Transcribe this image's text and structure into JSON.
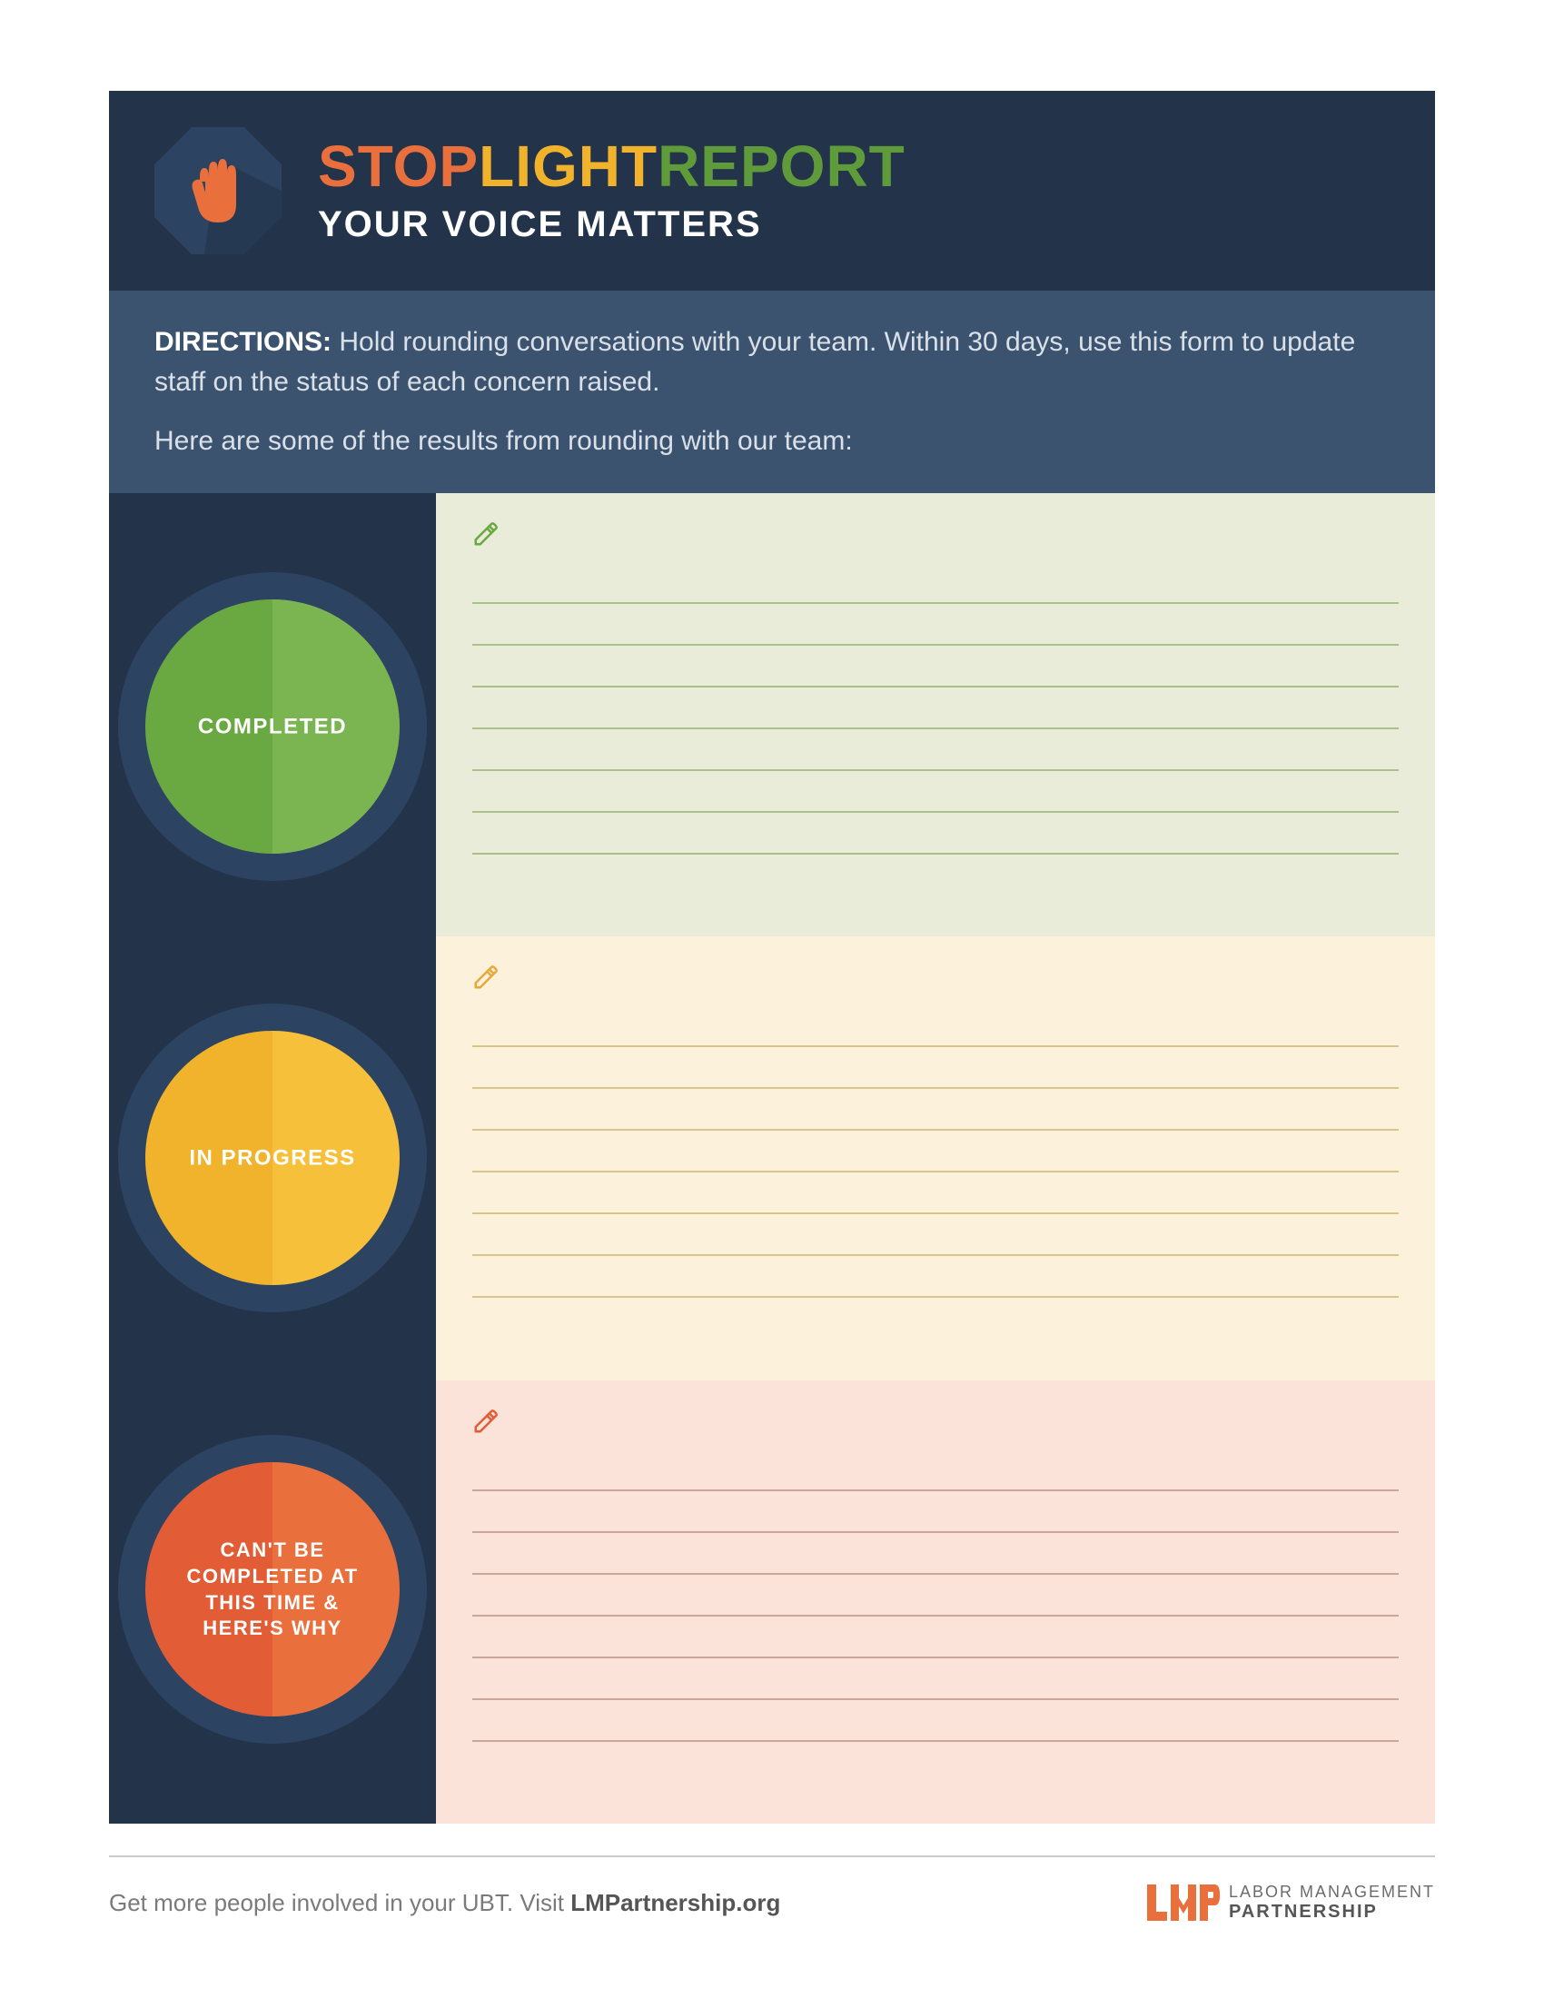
{
  "colors": {
    "header_bg": "#22334a",
    "directions_bg": "#3c5370",
    "light_col_bg": "#22334a",
    "outer_ring": "#2c4461",
    "title_stop": "#e96f3c",
    "title_light": "#f1b22c",
    "title_report": "#609b3b",
    "green_left": "#6aa842",
    "green_right": "#7bb552",
    "yellow_left": "#f1b22c",
    "yellow_right": "#f6c03a",
    "red_left": "#e25d35",
    "red_right": "#e96f3c",
    "panel_green_bg": "#e9ecd9",
    "panel_green_line": "#a9c18b",
    "panel_green_icon": "#6aa842",
    "panel_yellow_bg": "#fcf1da",
    "panel_yellow_line": "#d9c48a",
    "panel_yellow_icon": "#e8a83a",
    "panel_red_bg": "#fbe3d9",
    "panel_red_line": "#caa79c",
    "panel_red_icon": "#e25d35",
    "octagon_fill": "#2c4461",
    "hand_fill": "#e96f3c",
    "logo_orange": "#e96f3c"
  },
  "header": {
    "title_word1": "STOP",
    "title_word2": "LIGHT",
    "title_word3": "REPORT",
    "subtitle": "YOUR VOICE MATTERS"
  },
  "directions": {
    "label": "DIRECTIONS:",
    "text": "Hold rounding conversations with your team. Within 30 days, use this form to update staff on the status of each concern raised.",
    "line2": "Here are some of the results from rounding with our team:"
  },
  "lights": {
    "green_label": "COMPLETED",
    "yellow_label": "IN PROGRESS",
    "red_label": "CAN'T BE COMPLETED AT THIS TIME & HERE'S WHY"
  },
  "panels": {
    "lines_per_panel": 7
  },
  "footer": {
    "text_prefix": "Get more people involved in your UBT. Visit ",
    "text_bold": "LMPartnership.org",
    "logo_top": "LABOR MANAGEMENT",
    "logo_bottom": "PARTNERSHIP"
  }
}
